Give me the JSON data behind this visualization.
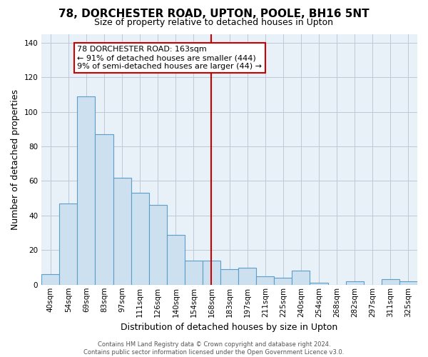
{
  "title": "78, DORCHESTER ROAD, UPTON, POOLE, BH16 5NT",
  "subtitle": "Size of property relative to detached houses in Upton",
  "xlabel": "Distribution of detached houses by size in Upton",
  "ylabel": "Number of detached properties",
  "bar_labels": [
    "40sqm",
    "54sqm",
    "69sqm",
    "83sqm",
    "97sqm",
    "111sqm",
    "126sqm",
    "140sqm",
    "154sqm",
    "168sqm",
    "183sqm",
    "197sqm",
    "211sqm",
    "225sqm",
    "240sqm",
    "254sqm",
    "268sqm",
    "282sqm",
    "297sqm",
    "311sqm",
    "325sqm"
  ],
  "bar_values": [
    6,
    47,
    109,
    87,
    62,
    53,
    46,
    29,
    14,
    14,
    9,
    10,
    5,
    4,
    8,
    1,
    0,
    2,
    0,
    3,
    2
  ],
  "bar_color": "#cce0f0",
  "bar_edge_color": "#5a9ec9",
  "vline_index": 9,
  "vline_color": "#cc0000",
  "ylim": [
    0,
    145
  ],
  "yticks": [
    0,
    20,
    40,
    60,
    80,
    100,
    120,
    140
  ],
  "annotation_title": "78 DORCHESTER ROAD: 163sqm",
  "annotation_line1": "← 91% of detached houses are smaller (444)",
  "annotation_line2": "9% of semi-detached houses are larger (44) →",
  "annotation_box_color": "#ffffff",
  "annotation_box_edge": "#cc0000",
  "footer_line1": "Contains HM Land Registry data © Crown copyright and database right 2024.",
  "footer_line2": "Contains public sector information licensed under the Open Government Licence v3.0.",
  "background_color": "#ffffff",
  "plot_bg_color": "#e8f0f8",
  "grid_color": "#c0c8d8",
  "title_fontsize": 11,
  "subtitle_fontsize": 9,
  "axis_label_fontsize": 9,
  "tick_fontsize": 7.5,
  "annotation_fontsize": 8,
  "footer_fontsize": 6
}
